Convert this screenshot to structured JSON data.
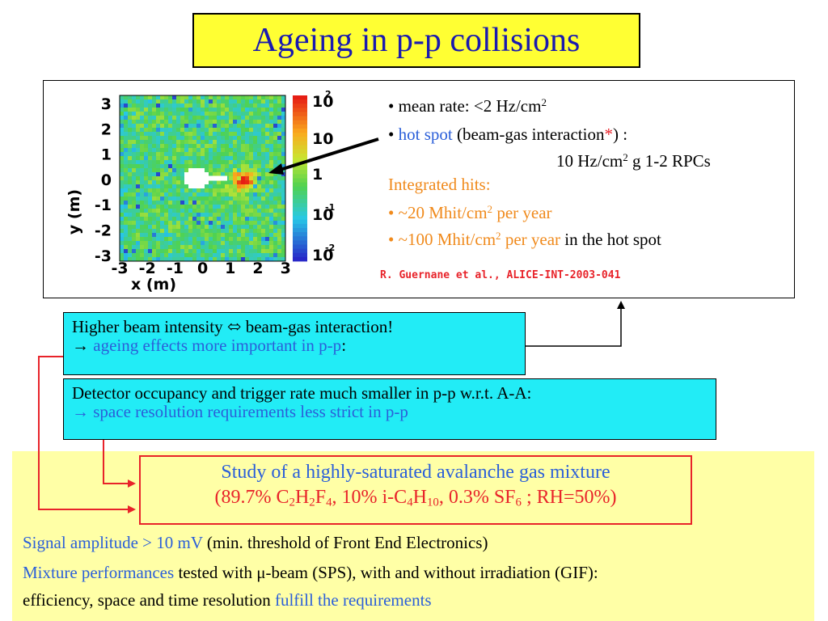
{
  "title": "Ageing in p-p collisions",
  "figure": {
    "y_axis_label": "y (m)",
    "x_axis_label": "x (m)",
    "x_ticks": [
      "-3",
      "-2",
      "-1",
      "0",
      "1",
      "2",
      "3"
    ],
    "y_ticks": [
      "3",
      "2",
      "1",
      "0",
      "-1",
      "-2",
      "-3"
    ],
    "colorbar_ticks": [
      {
        "base": "10",
        "exp": "2"
      },
      {
        "base": "10",
        "exp": ""
      },
      {
        "base": "1",
        "exp": ""
      },
      {
        "base": "10",
        "exp": "-1"
      },
      {
        "base": "10",
        "exp": "-2"
      }
    ]
  },
  "bullets": {
    "mean_rate_prefix": "• mean rate: <2 Hz/cm",
    "mean_rate_sup": "2",
    "hotspot_bullet": "• ",
    "hotspot_label": "hot spot",
    "hotspot_mid": " (beam-gas interaction",
    "hotspot_star": "*",
    "hotspot_end": ") :",
    "hotspot_rate_a": "10 Hz/cm",
    "hotspot_rate_sup": "2",
    "hotspot_rate_b": " g 1-2 RPCs",
    "integrated_head": "Integrated hits:",
    "int1_a": "• ~20 Mhit/cm",
    "int1_sup": "2",
    "int1_b": " per year",
    "int2_a": "• ~100 Mhit/cm",
    "int2_sup": "2",
    "int2_b": " per year",
    "int2_c": " in the hot spot"
  },
  "reference": "R. Guernane et al., ALICE-INT-2003-041",
  "box_intensity": {
    "line1": "Higher beam intensity ⬄ beam-gas interaction!",
    "line2_arrow": "→ ",
    "line2_blue": "ageing effects more important in p-p",
    "line2_end": ":"
  },
  "box_occupancy": {
    "line1": "Detector occupancy and trigger rate much smaller in p-p w.r.t. A-A:",
    "line2": "→ space resolution requirements less strict in p-p"
  },
  "mixture": {
    "line1": "Study of a highly-saturated avalanche gas mixture",
    "l2_a": "(89.7% C",
    "l2_s1": "2",
    "l2_b": "H",
    "l2_s2": "2",
    "l2_c": "F",
    "l2_s3": "4",
    "l2_d": ", 10% i-C",
    "l2_s4": "4",
    "l2_e": "H",
    "l2_s5": "10",
    "l2_f": ", 0.3% SF",
    "l2_s6": "6",
    "l2_g": " ; RH=50%)"
  },
  "bottom": {
    "l1_blue": "Signal amplitude > 10 mV",
    "l1_black": " (min. threshold of Front End Electronics)",
    "l2_blue": "Mixture performances",
    "l2_black": " tested with μ-beam (SPS), with and without irradiation (GIF):",
    "l3_black": "efficiency, space and time resolution ",
    "l3_blue": "fulfill the requirements"
  },
  "colors": {
    "title_bg": "#ffff33",
    "title_text": "#1a1ab0",
    "accent_blue": "#2b5fd9",
    "accent_orange": "#f08a1c",
    "accent_red": "#e8232a",
    "cyan_box": "#22ecf6",
    "yellow_area": "#ffffa6"
  }
}
